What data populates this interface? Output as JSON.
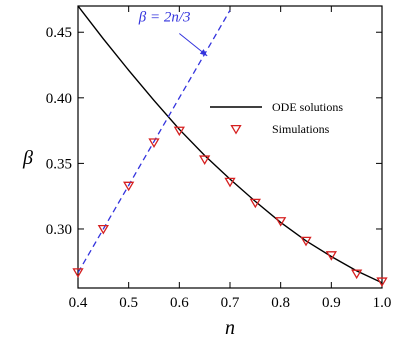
{
  "chart_data": {
    "type": "line",
    "xlabel": "n",
    "ylabel": "β",
    "xlim": [
      0.4,
      1.0
    ],
    "ylim": [
      0.255,
      0.47
    ],
    "x_ticks": [
      "0.4",
      "0.5",
      "0.6",
      "0.7",
      "0.8",
      "0.9",
      "1.0"
    ],
    "y_ticks": [
      "0.30",
      "0.35",
      "0.40",
      "0.45"
    ],
    "x_tick_values": [
      0.4,
      0.5,
      0.6,
      0.7,
      0.8,
      0.9,
      1.0
    ],
    "y_tick_values": [
      0.3,
      0.35,
      0.4,
      0.45
    ],
    "grid": false,
    "legend_position": "right",
    "colors": {
      "ode": "#000000",
      "line": "#3333dd",
      "sim": "#d62020"
    },
    "series": [
      {
        "name": "ODE solutions",
        "style": "solid-line",
        "x": [
          0.4,
          0.45,
          0.5,
          0.55,
          0.6,
          0.65,
          0.7,
          0.75,
          0.8,
          0.85,
          0.9,
          0.95,
          1.0
        ],
        "y": [
          0.47,
          0.445,
          0.421,
          0.398,
          0.376,
          0.356,
          0.338,
          0.321,
          0.305,
          0.291,
          0.279,
          0.268,
          0.259
        ]
      },
      {
        "name": "Simulations",
        "style": "triangle-marker",
        "x": [
          0.4,
          0.45,
          0.5,
          0.55,
          0.6,
          0.65,
          0.7,
          0.75,
          0.8,
          0.85,
          0.9,
          0.95,
          1.0
        ],
        "y": [
          0.267,
          0.3,
          0.333,
          0.366,
          0.375,
          0.353,
          0.336,
          0.32,
          0.306,
          0.291,
          0.28,
          0.266,
          0.26
        ]
      },
      {
        "style": "dashed-line",
        "x": [
          0.4,
          0.5,
          0.6,
          0.7
        ],
        "y": [
          0.2667,
          0.3333,
          0.4,
          0.4667
        ]
      }
    ],
    "annotations": [
      {
        "text": "β = 2n/3",
        "x": 0.52,
        "y": 0.458,
        "arrow_to_x": 0.655,
        "arrow_to_y": 0.432
      }
    ]
  }
}
